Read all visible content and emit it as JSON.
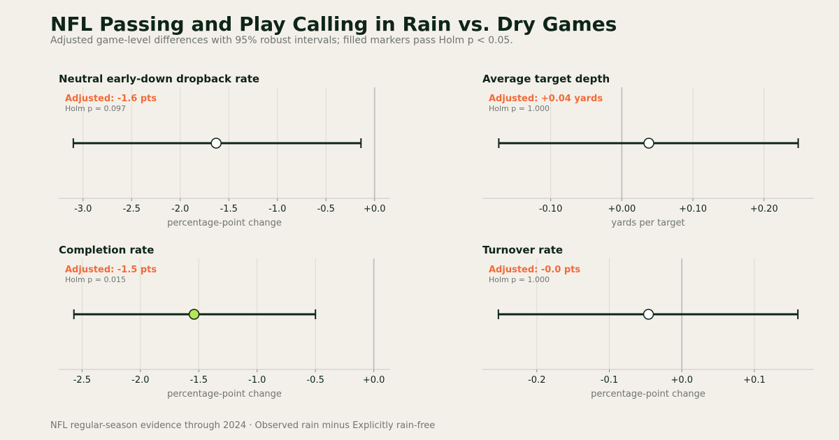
{
  "title": "NFL Passing and Play Calling in Rain vs. Dry Games",
  "subtitle": "Adjusted game-level differences with 95% robust intervals; filled markers pass Holm p < 0.05.",
  "footer": "NFL regular-season evidence through 2024 · Observed rain minus Explicitly rain-free",
  "colors": {
    "background": "#f3f0ea",
    "text": "#0e2418",
    "accent": "#f26b3a",
    "muted": "#6f7470",
    "significant_marker": "#b5e655",
    "nonsignificant_marker": "#ffffff",
    "interval": "#0e2418",
    "grid": "#dcd9d2",
    "zero_line": "#c4c4c4"
  },
  "chart_data": [
    {
      "type": "forest",
      "title": "Neutral early-down dropback rate",
      "annotation": "Adjusted: -1.6 pts",
      "holm_label": "Holm p = 0.097",
      "estimate": -1.63,
      "ci": [
        -3.1,
        -0.14
      ],
      "significant": false,
      "xlim": [
        -3.25,
        0.16
      ],
      "ticks": [
        -3.0,
        -2.5,
        -2.0,
        -1.5,
        -1.0,
        -0.5,
        0.0
      ],
      "tick_labels": [
        "-3.0",
        "-2.5",
        "-2.0",
        "-1.5",
        "-1.0",
        "-0.5",
        "+0.0"
      ],
      "xlabel": "percentage-point change",
      "grid": true
    },
    {
      "type": "forest",
      "title": "Average target depth",
      "annotation": "Adjusted: +0.04 yards",
      "holm_label": "Holm p = 1.000",
      "estimate": 0.038,
      "ci": [
        -0.173,
        0.248
      ],
      "significant": false,
      "xlim": [
        -0.196,
        0.27
      ],
      "ticks": [
        -0.1,
        0.0,
        0.1,
        0.2
      ],
      "tick_labels": [
        "-0.10",
        "+0.00",
        "+0.10",
        "+0.20"
      ],
      "xlabel": "yards per target",
      "grid": true
    },
    {
      "type": "forest",
      "title": "Completion rate",
      "annotation": "Adjusted: -1.5 pts",
      "holm_label": "Holm p = 0.015",
      "estimate": -1.54,
      "ci": [
        -2.57,
        -0.5
      ],
      "significant": true,
      "xlim": [
        -2.7,
        0.14
      ],
      "ticks": [
        -2.5,
        -2.0,
        -1.5,
        -1.0,
        -0.5,
        0.0
      ],
      "tick_labels": [
        "-2.5",
        "-2.0",
        "-1.5",
        "-1.0",
        "-0.5",
        "+0.0"
      ],
      "xlabel": "percentage-point change",
      "grid": true
    },
    {
      "type": "forest",
      "title": "Turnover rate",
      "annotation": "Adjusted: -0.0 pts",
      "holm_label": "Holm p = 1.000",
      "estimate": -0.046,
      "ci": [
        -0.253,
        0.16
      ],
      "significant": false,
      "xlim": [
        -0.275,
        0.182
      ],
      "ticks": [
        -0.2,
        -0.1,
        0.0,
        0.1
      ],
      "tick_labels": [
        "-0.2",
        "-0.1",
        "+0.0",
        "+0.1"
      ],
      "xlabel": "percentage-point change",
      "grid": true
    }
  ]
}
